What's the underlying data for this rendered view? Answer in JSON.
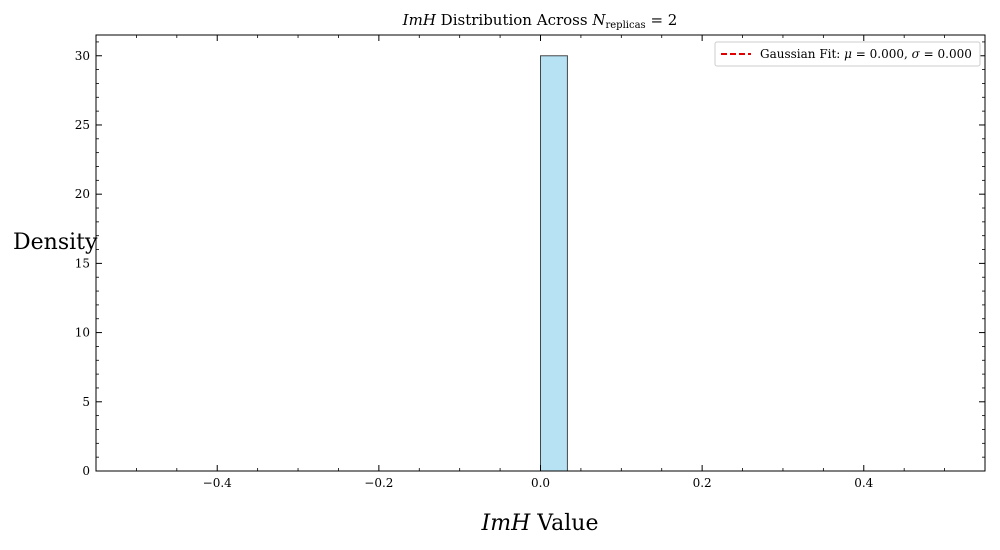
{
  "chart_data": {
    "type": "bar",
    "title_parts": {
      "var": "ImH",
      "mid": " Distribution Across ",
      "n": "N",
      "sub": "replicas",
      "eq": " = 2"
    },
    "xlabel_parts": {
      "var": "ImH",
      "rest": " Value"
    },
    "ylabel": "Density",
    "xlim": [
      -0.55,
      0.55
    ],
    "ylim": [
      0,
      31.5
    ],
    "x_ticks": [
      -0.4,
      -0.2,
      0.0,
      0.2,
      0.4
    ],
    "x_tick_labels": [
      "−0.4",
      "−0.2",
      "0.0",
      "0.2",
      "0.4"
    ],
    "y_ticks": [
      0,
      5,
      10,
      15,
      20,
      25,
      30
    ],
    "y_tick_labels": [
      "0",
      "5",
      "10",
      "15",
      "20",
      "25",
      "30"
    ],
    "bars": [
      {
        "x0": 0.0,
        "x1": 0.0333,
        "density": 30
      }
    ],
    "bar_color": "#87CEEB",
    "bar_edge_color": "#000000",
    "legend": {
      "position": "top-right",
      "entries": [
        {
          "style": "dashed",
          "color": "#e00000",
          "label_prefix": "Gaussian Fit: ",
          "mu_sym": "μ",
          "mu_val": " = 0.000, ",
          "sigma_sym": "σ",
          "sigma_val": " = 0.000"
        }
      ]
    },
    "grid": false
  }
}
